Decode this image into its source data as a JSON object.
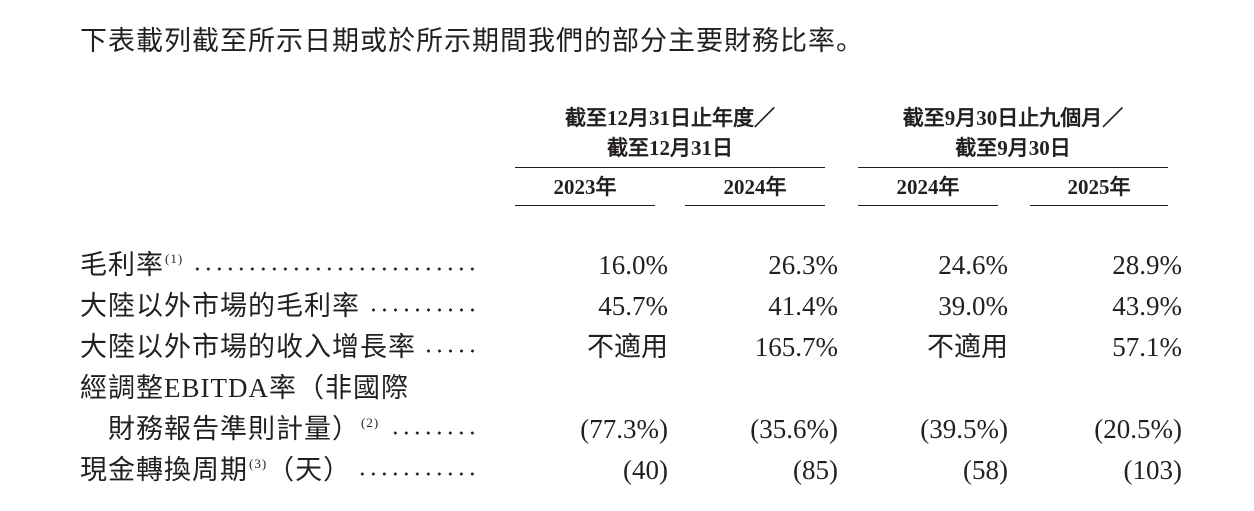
{
  "intro": "下表載列截至所示日期或於所示期間我們的部分主要財務比率。",
  "header": {
    "groups": [
      {
        "lines": [
          "截至12月31日止年度／",
          "截至12月31日"
        ],
        "years": [
          "2023年",
          "2024年"
        ]
      },
      {
        "lines": [
          "截至9月30日止九個月／",
          "截至9月30日"
        ],
        "years": [
          "2024年",
          "2025年"
        ]
      }
    ]
  },
  "rows": [
    {
      "label": "毛利率",
      "note": "(1)",
      "values": [
        "16.0%",
        "26.3%",
        "24.6%",
        "28.9%"
      ]
    },
    {
      "label": "大陸以外市場的毛利率",
      "values": [
        "45.7%",
        "41.4%",
        "39.0%",
        "43.9%"
      ]
    },
    {
      "label": "大陸以外市場的收入增長率",
      "values": [
        "不適用",
        "165.7%",
        "不適用",
        "57.1%"
      ]
    },
    {
      "label": "經調整EBITDA率（非國際",
      "label_2": "財務報告準則計量）",
      "note": "(2)",
      "values": [
        "(77.3%)",
        "(35.6%)",
        "(39.5%)",
        "(20.5%)"
      ]
    },
    {
      "label": "現金轉換周期",
      "note": "(3)",
      "suffix": "（天）",
      "values": [
        "(40)",
        "(85)",
        "(58)",
        "(103)"
      ]
    }
  ]
}
